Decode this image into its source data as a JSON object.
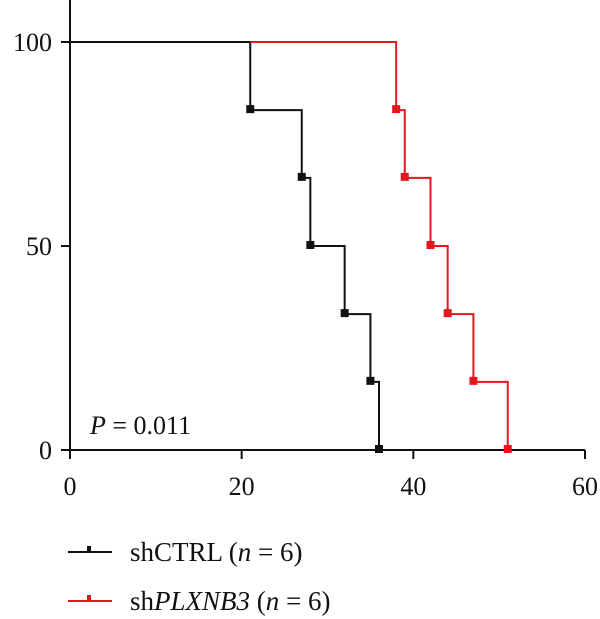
{
  "chart_data": {
    "type": "line",
    "subtype": "kaplan-meier",
    "xlim": [
      0,
      60
    ],
    "ylim": [
      0,
      100
    ],
    "xticks": [
      0,
      20,
      40,
      60
    ],
    "yticks": [
      0,
      50,
      100
    ],
    "xtick_labels": [
      "0",
      "20",
      "40",
      "60"
    ],
    "ytick_labels": [
      "0",
      "50",
      "100"
    ],
    "grid": false,
    "legend_position": "bottom-left",
    "annotation": {
      "prefix": "P",
      "rest": " = 0.011"
    },
    "series": [
      {
        "name": "shCTRL (n = 6)",
        "legend": {
          "prefix": "shCTRL (",
          "italic": "n",
          "suffix": " = 6)"
        },
        "color": "#111111",
        "points": [
          [
            0,
            100
          ],
          [
            21,
            83.3
          ],
          [
            27,
            66.7
          ],
          [
            28,
            50
          ],
          [
            32,
            33.3
          ],
          [
            35,
            16.7
          ],
          [
            36,
            0
          ]
        ],
        "markers": [
          [
            21,
            83.3
          ],
          [
            27,
            66.7
          ],
          [
            28,
            50
          ],
          [
            32,
            33.3
          ],
          [
            35,
            16.7
          ],
          [
            36,
            0
          ]
        ]
      },
      {
        "name": "shPLXNB3 (n = 6)",
        "legend": {
          "prefix": "sh",
          "italic_gene": "PLXNB3",
          "mid": " (",
          "italic": "n",
          "suffix": " = 6)"
        },
        "color": "#e3171e",
        "points": [
          [
            21,
            100
          ],
          [
            38,
            83.3
          ],
          [
            39,
            66.7
          ],
          [
            42,
            50
          ],
          [
            44,
            33.3
          ],
          [
            47,
            16.7
          ],
          [
            51,
            0
          ]
        ],
        "markers": [
          [
            38,
            83.3
          ],
          [
            39,
            66.7
          ],
          [
            42,
            50
          ],
          [
            44,
            33.3
          ],
          [
            47,
            16.7
          ],
          [
            51,
            0
          ]
        ]
      }
    ]
  }
}
